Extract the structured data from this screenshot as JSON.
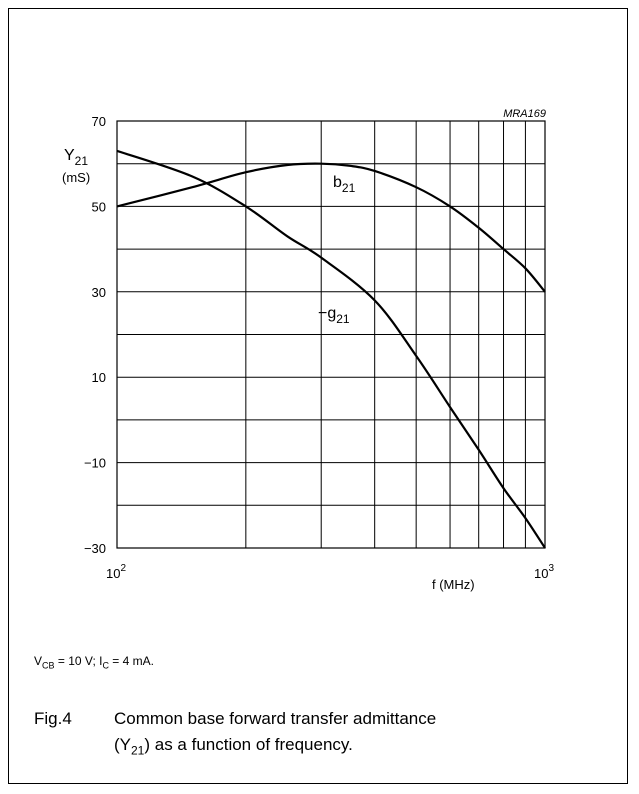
{
  "chart_data": {
    "type": "line",
    "id_label": "MRA169",
    "x_scale": "log",
    "xlim": [
      100,
      1000
    ],
    "ylim": [
      -30,
      70
    ],
    "x_ticks": [
      100,
      1000
    ],
    "x_tick_labels": [
      {
        "base": "10",
        "exp": "2"
      },
      {
        "base": "10",
        "exp": "3"
      }
    ],
    "x_grid": [
      100,
      200,
      300,
      400,
      500,
      600,
      700,
      800,
      900,
      1000
    ],
    "y_ticks": [
      -30,
      -10,
      10,
      30,
      50,
      70
    ],
    "y_tick_labels": [
      "−30",
      "−10",
      "10",
      "30",
      "50",
      "70"
    ],
    "y_grid": [
      -30,
      -20,
      -10,
      0,
      10,
      20,
      30,
      40,
      50,
      60,
      70
    ],
    "xlabel": "f (MHz)",
    "ylabel": {
      "main": "Y",
      "sub": "21",
      "unit": "(mS)"
    },
    "grid": true,
    "series": [
      {
        "name": "b21",
        "label_main": "b",
        "label_sub": "21",
        "x": [
          100,
          150,
          200,
          250,
          300,
          350,
          400,
          500,
          600,
          700,
          800,
          900,
          1000
        ],
        "y": [
          50,
          54.5,
          58,
          59.7,
          60,
          59.5,
          58.3,
          54.5,
          50,
          45,
          40,
          35.5,
          30
        ]
      },
      {
        "name": "-g21",
        "label_main": "−g",
        "label_sub": "21",
        "x": [
          100,
          150,
          200,
          250,
          300,
          400,
          500,
          600,
          700,
          800,
          900,
          1000
        ],
        "y": [
          63,
          57,
          50,
          43,
          38,
          28,
          15,
          3,
          -7,
          -16,
          -23,
          -30
        ]
      }
    ]
  },
  "conditions": {
    "vcb_label": "V",
    "vcb_sub": "CB",
    "vcb_value": " = 10 V; I",
    "ic_sub": "C",
    "ic_value": " = 4 mA."
  },
  "caption": {
    "figure": "Fig.4",
    "text_line1": "Common base forward transfer admittance",
    "text_line2_pre": "(Y",
    "text_line2_sub": "21",
    "text_line2_post": ") as a function of frequency."
  },
  "colors": {
    "line": "#000000",
    "grid": "#000000",
    "background": "#ffffff"
  }
}
